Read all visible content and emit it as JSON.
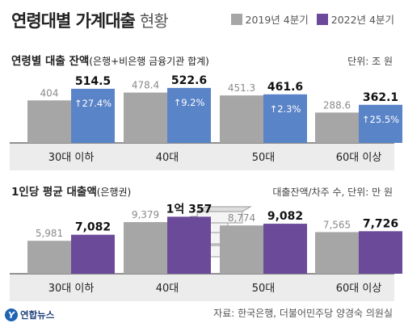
{
  "header": {
    "title": "연령대별 가계대출",
    "subtitle": "현황",
    "legend": [
      {
        "label": "2019년 4분기",
        "color": "#a6a6a6"
      },
      {
        "label": "2022년 4분기",
        "color": "#6b4a99"
      }
    ]
  },
  "footer": {
    "source": "자료: 한국은행, 더불어민주당 양경숙 의원실",
    "logo": "연합뉴스"
  },
  "chart_data": [
    {
      "type": "bar",
      "title": "연령별 대출 잔액",
      "title_note": "(은행+비은행 금융기관 합계)",
      "unit": "단위: 조 원",
      "categories": [
        "30대 이하",
        "40대",
        "50대",
        "60대 이상"
      ],
      "series": [
        {
          "name": "2019년 4분기",
          "values": [
            404,
            478.4,
            451.3,
            288.6
          ],
          "color": "#a6a6a6"
        },
        {
          "name": "2022년 4분기",
          "values": [
            514.5,
            522.6,
            461.6,
            362.1
          ],
          "color": "#5a84c8"
        }
      ],
      "values_text": [
        [
          "404",
          "478.4",
          "451.3",
          "288.6"
        ],
        [
          "514.5",
          "522.6",
          "461.6",
          "362.1"
        ]
      ],
      "changes": [
        "↑27.4%",
        "↑9.2%",
        "↑2.3%",
        "↑25.5%"
      ],
      "ylim": [
        0,
        560
      ]
    },
    {
      "type": "bar",
      "title": "1인당 평균 대출액",
      "title_note": "(은행권)",
      "unit": "대출잔액/차주 수, 단위: 만 원",
      "categories": [
        "30대 이하",
        "40대",
        "50대",
        "60대 이상"
      ],
      "series": [
        {
          "name": "2019년 4분기",
          "values": [
            5981,
            9379,
            8774,
            7565
          ],
          "color": "#a6a6a6"
        },
        {
          "name": "2022년 4분기",
          "values": [
            7082,
            10357,
            9082,
            7726
          ],
          "color": "#6b4a99"
        }
      ],
      "values_text": [
        [
          "5,981",
          "9,379",
          "8,774",
          "7,565"
        ],
        [
          "7,082",
          "1억 357",
          "9,082",
          "7,726"
        ]
      ],
      "ylim": [
        0,
        11000
      ]
    }
  ]
}
